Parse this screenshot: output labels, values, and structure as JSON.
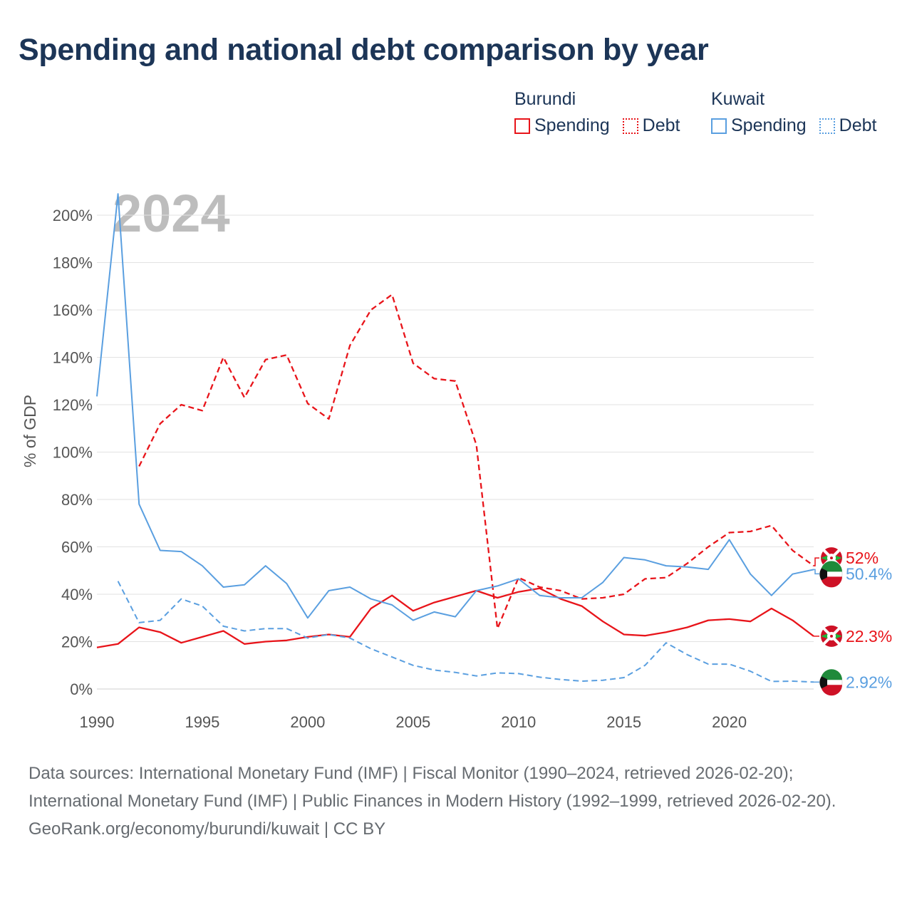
{
  "title": "Spending and national debt comparison by year",
  "legend": {
    "groups": [
      {
        "country": "Burundi",
        "items": [
          {
            "label": "Spending",
            "style": "solid",
            "color": "#e8141a"
          },
          {
            "label": "Debt",
            "style": "dotted",
            "color": "#e8141a"
          }
        ]
      },
      {
        "country": "Kuwait",
        "items": [
          {
            "label": "Spending",
            "style": "solid",
            "color": "#5a9fe0"
          },
          {
            "label": "Debt",
            "style": "dotted",
            "color": "#5a9fe0"
          }
        ]
      }
    ]
  },
  "colors": {
    "burundi": "#e8141a",
    "kuwait": "#5a9fe0",
    "grid": "#e2e2e2",
    "axis_text": "#555555",
    "year_watermark": "#bdbdbd"
  },
  "chart_data": {
    "type": "line",
    "year_label": "2024",
    "ylabel": "% of GDP",
    "xlim": [
      1990,
      2024
    ],
    "ylim": [
      -10,
      210
    ],
    "yticks": [
      0,
      20,
      40,
      60,
      80,
      100,
      120,
      140,
      160,
      180,
      200
    ],
    "ytick_labels": [
      "0%",
      "20%",
      "40%",
      "60%",
      "80%",
      "100%",
      "120%",
      "140%",
      "160%",
      "180%",
      "200%"
    ],
    "xticks": [
      1990,
      1995,
      2000,
      2005,
      2010,
      2015,
      2020
    ],
    "xtick_labels": [
      "1990",
      "1995",
      "2000",
      "2005",
      "2010",
      "2015",
      "2020"
    ],
    "series": [
      {
        "name": "Burundi Spending",
        "country": "Burundi",
        "metric": "Spending",
        "style": "solid",
        "color": "#e8141a",
        "x": [
          1990,
          1991,
          1992,
          1993,
          1994,
          1995,
          1996,
          1997,
          1998,
          1999,
          2000,
          2001,
          2002,
          2003,
          2004,
          2005,
          2006,
          2007,
          2008,
          2009,
          2010,
          2011,
          2012,
          2013,
          2014,
          2015,
          2016,
          2017,
          2018,
          2019,
          2020,
          2021,
          2022,
          2023,
          2024
        ],
        "values": [
          17.5,
          19,
          26,
          24,
          19.5,
          22,
          24.5,
          19,
          20,
          20.5,
          22,
          23,
          22,
          34,
          39.5,
          33,
          36.5,
          39,
          41.5,
          38.5,
          41,
          42.5,
          38,
          35,
          28.5,
          23,
          22.5,
          24,
          26,
          29,
          29.5,
          28.5,
          34,
          29,
          22.3
        ],
        "end_label": "22.3%"
      },
      {
        "name": "Burundi Debt",
        "country": "Burundi",
        "metric": "Debt",
        "style": "dashed",
        "color": "#e8141a",
        "x": [
          1992,
          1993,
          1994,
          1995,
          1996,
          1997,
          1998,
          1999,
          2000,
          2001,
          2002,
          2003,
          2004,
          2005,
          2006,
          2007,
          2008,
          2009,
          2010,
          2011,
          2012,
          2013,
          2014,
          2015,
          2016,
          2017,
          2018,
          2019,
          2020,
          2021,
          2022,
          2023,
          2024
        ],
        "values": [
          94,
          112,
          120,
          117.5,
          140,
          123,
          139,
          141,
          120.5,
          114,
          145,
          160,
          166.5,
          137.5,
          131,
          130,
          103,
          25.5,
          47,
          43,
          41.5,
          38,
          38.5,
          40,
          46.5,
          47,
          53,
          60,
          66,
          66.5,
          69,
          58.5,
          52
        ],
        "end_label": "52%"
      },
      {
        "name": "Kuwait Spending",
        "country": "Kuwait",
        "metric": "Spending",
        "style": "solid",
        "color": "#5a9fe0",
        "x": [
          1990,
          1991,
          1992,
          1993,
          1994,
          1995,
          1996,
          1997,
          1998,
          1999,
          2000,
          2001,
          2002,
          2003,
          2004,
          2005,
          2006,
          2007,
          2008,
          2009,
          2010,
          2011,
          2012,
          2013,
          2014,
          2015,
          2016,
          2017,
          2018,
          2019,
          2020,
          2021,
          2022,
          2023,
          2024
        ],
        "values": [
          123.5,
          209,
          78,
          58.5,
          58,
          52,
          43,
          44,
          52,
          44.5,
          30,
          41.5,
          43,
          38,
          35.5,
          29,
          32.5,
          30.5,
          41.5,
          43.5,
          46.5,
          39.5,
          38.5,
          38.5,
          45,
          55.5,
          54.5,
          52,
          51.5,
          50.5,
          63,
          48.5,
          39.5,
          48.5,
          50.4
        ],
        "end_label": "50.4%"
      },
      {
        "name": "Kuwait Debt",
        "country": "Kuwait",
        "metric": "Debt",
        "style": "dashed",
        "color": "#5a9fe0",
        "x": [
          1991,
          1992,
          1993,
          1994,
          1995,
          1996,
          1997,
          1998,
          1999,
          2000,
          2001,
          2002,
          2003,
          2004,
          2005,
          2006,
          2007,
          2008,
          2009,
          2010,
          2011,
          2012,
          2013,
          2014,
          2015,
          2016,
          2017,
          2018,
          2019,
          2020,
          2021,
          2022,
          2023,
          2024
        ],
        "values": [
          45.5,
          28,
          29,
          38,
          35,
          26.5,
          24.5,
          25.5,
          25.5,
          21.5,
          23,
          21.5,
          17,
          13.5,
          10,
          8,
          7,
          5.5,
          6.8,
          6.5,
          5,
          4,
          3.3,
          3.7,
          4.8,
          10,
          19.5,
          14.5,
          10.5,
          10.5,
          7.5,
          3.2,
          3.3,
          2.92
        ],
        "end_label": "2.92%"
      }
    ]
  },
  "footer": {
    "sources": "Data sources: International Monetary Fund (IMF) | Fiscal Monitor (1990–2024, retrieved 2026-02-20); International Monetary Fund (IMF) | Public Finances in Modern History (1992–1999, retrieved 2026-02-20).",
    "credit": "GeoRank.org/economy/burundi/kuwait | CC BY"
  }
}
